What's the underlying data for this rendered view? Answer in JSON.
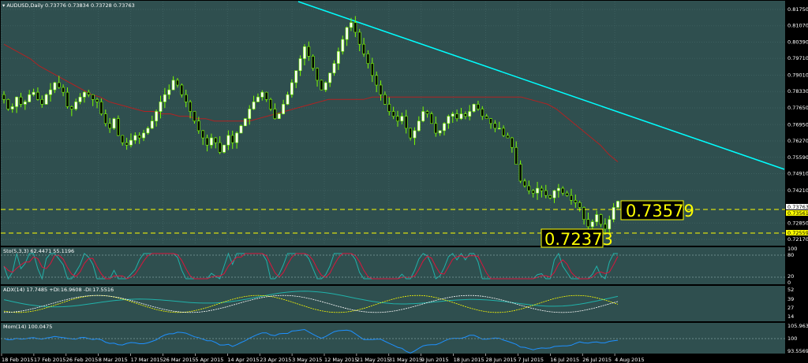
{
  "header": {
    "title": "AUDUSD,Daily",
    "ohlc": "0.73776 0.73834 0.73728 0.73763"
  },
  "colors": {
    "background": "#2f4f4f",
    "grid": "#3d5f5f",
    "bull_candle": "#7cfc00",
    "bear_candle": "#000000",
    "moving_average": "#b22222",
    "trendline": "#00ffff",
    "level_line": "#ffff00",
    "stochastic_main": "#20b2aa",
    "stochastic_signal": "#dc143c",
    "adx": "#20b2aa",
    "plus_di": "#ffff00",
    "minus_di": "#ffffff",
    "momentum": "#1e90ff"
  },
  "price_axis": [
    "0.81750",
    "0.81070",
    "0.80390",
    "0.79710",
    "0.79010",
    "0.78330",
    "0.77650",
    "0.76950",
    "0.76270",
    "0.75590",
    "0.74910",
    "0.74210",
    "0.73763",
    "0.73561",
    "0.72850",
    "0.72559",
    "0.72170"
  ],
  "date_axis": [
    "18 Feb 2015",
    "17 Feb 2015",
    "26 Feb 2015",
    "8 Mar 2015",
    "17 Mar 2015",
    "26 Mar 2015",
    "5 Apr 2015",
    "14 Apr 2015",
    "23 Apr 2015",
    "3 May 2015",
    "12 May 2015",
    "21 May 2015",
    "31 May 2015",
    "9 Jun 2015",
    "18 Jun 2015",
    "28 Jun 2015",
    "7 Jul 2015",
    "16 Jul 2015",
    "26 Jul 2015",
    "4 Aug 2015"
  ],
  "annotations": {
    "resistance": "0.73579",
    "support": "0.72373"
  },
  "indicators": {
    "sto": {
      "label": "Sto(5,3,3) 62.4471 55.1196",
      "levels": [
        "100",
        "80",
        "20",
        "0"
      ]
    },
    "adx": {
      "label": "ADX(14) 17.7485 +DI:16.9608 -DI:17.5516",
      "levels": [
        "52",
        "39",
        "27",
        "14"
      ]
    },
    "mom": {
      "label": "Mom(14) 100.0475",
      "levels": [
        "105.9639",
        "100",
        "93.5569"
      ]
    }
  },
  "chart_data": {
    "type": "candlestick",
    "symbol": "AUDUSD",
    "timeframe": "Daily",
    "ylim": [
      0.7217,
      0.8175
    ],
    "last_ohlc": {
      "open": 0.73776,
      "high": 0.73834,
      "low": 0.73728,
      "close": 0.73763
    },
    "horizontal_levels": [
      0.73579,
      0.72373
    ],
    "closes": [
      0.78,
      0.776,
      0.777,
      0.781,
      0.778,
      0.779,
      0.782,
      0.783,
      0.78,
      0.778,
      0.782,
      0.784,
      0.787,
      0.785,
      0.783,
      0.777,
      0.776,
      0.779,
      0.781,
      0.783,
      0.782,
      0.78,
      0.779,
      0.774,
      0.77,
      0.768,
      0.772,
      0.765,
      0.762,
      0.761,
      0.763,
      0.765,
      0.764,
      0.766,
      0.768,
      0.771,
      0.775,
      0.779,
      0.782,
      0.784,
      0.788,
      0.786,
      0.782,
      0.779,
      0.775,
      0.771,
      0.767,
      0.764,
      0.761,
      0.764,
      0.762,
      0.758,
      0.761,
      0.765,
      0.762,
      0.766,
      0.769,
      0.772,
      0.776,
      0.779,
      0.781,
      0.783,
      0.78,
      0.776,
      0.772,
      0.774,
      0.778,
      0.782,
      0.787,
      0.792,
      0.797,
      0.802,
      0.798,
      0.793,
      0.788,
      0.784,
      0.787,
      0.791,
      0.795,
      0.8,
      0.805,
      0.81,
      0.812,
      0.808,
      0.803,
      0.799,
      0.795,
      0.79,
      0.786,
      0.782,
      0.778,
      0.775,
      0.773,
      0.771,
      0.773,
      0.768,
      0.764,
      0.767,
      0.771,
      0.775,
      0.774,
      0.77,
      0.766,
      0.767,
      0.77,
      0.773,
      0.774,
      0.772,
      0.774,
      0.773,
      0.775,
      0.778,
      0.776,
      0.773,
      0.772,
      0.77,
      0.768,
      0.768,
      0.765,
      0.764,
      0.76,
      0.753,
      0.746,
      0.744,
      0.742,
      0.741,
      0.743,
      0.742,
      0.74,
      0.739,
      0.742,
      0.743,
      0.741,
      0.74,
      0.738,
      0.737,
      0.735,
      0.73,
      0.727,
      0.729,
      0.732,
      0.728,
      0.726,
      0.73,
      0.735,
      0.7376
    ],
    "ma": [
      0.803,
      0.801,
      0.799,
      0.797,
      0.794,
      0.792,
      0.79,
      0.788,
      0.786,
      0.784,
      0.782,
      0.781,
      0.779,
      0.778,
      0.777,
      0.776,
      0.775,
      0.775,
      0.774,
      0.774,
      0.773,
      0.773,
      0.772,
      0.772,
      0.771,
      0.771,
      0.771,
      0.771,
      0.771,
      0.772,
      0.773,
      0.774,
      0.775,
      0.776,
      0.777,
      0.778,
      0.779,
      0.78,
      0.78,
      0.78,
      0.78,
      0.78,
      0.781,
      0.781,
      0.781,
      0.781,
      0.781,
      0.781,
      0.781,
      0.781,
      0.781,
      0.781,
      0.781,
      0.781,
      0.781,
      0.781,
      0.781,
      0.781,
      0.781,
      0.781,
      0.78,
      0.779,
      0.778,
      0.776,
      0.773,
      0.77,
      0.767,
      0.764,
      0.761,
      0.757,
      0.754
    ]
  }
}
